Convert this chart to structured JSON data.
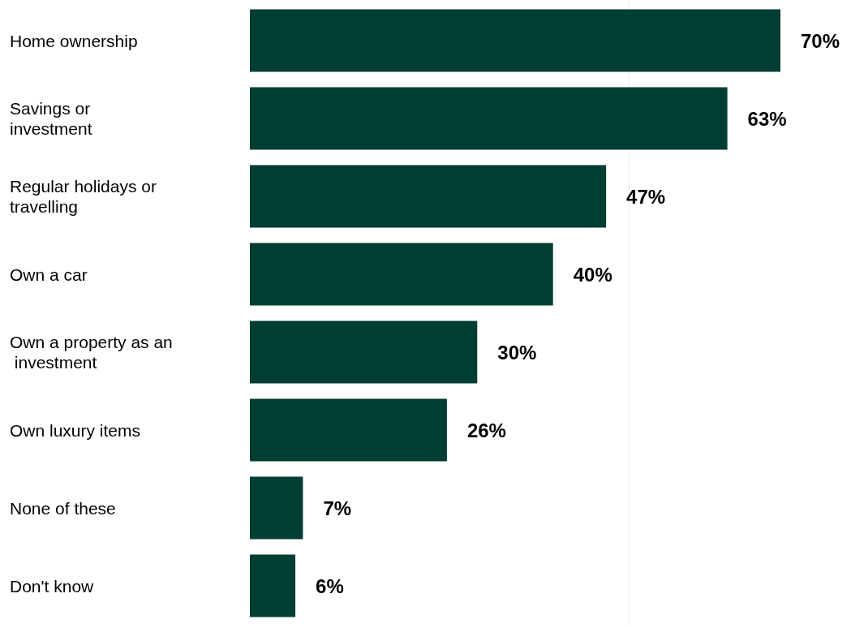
{
  "chart_data": {
    "type": "bar",
    "orientation": "horizontal",
    "categories": [
      "Home ownership",
      "Savings or investment",
      "Regular holidays or travelling",
      "Own a car",
      "Own a property as an investment",
      "Own luxury items",
      "None of these",
      "Don't know"
    ],
    "values": [
      70,
      63,
      47,
      40,
      30,
      26,
      7,
      6
    ],
    "color": "#003d33",
    "value_labels": [
      "70%",
      "63%",
      "47%",
      "40%",
      "30%",
      "26%",
      "7%",
      "6%"
    ],
    "ref_lines": [
      {
        "axis": "x",
        "value": 50,
        "color": "#ececec"
      }
    ]
  }
}
